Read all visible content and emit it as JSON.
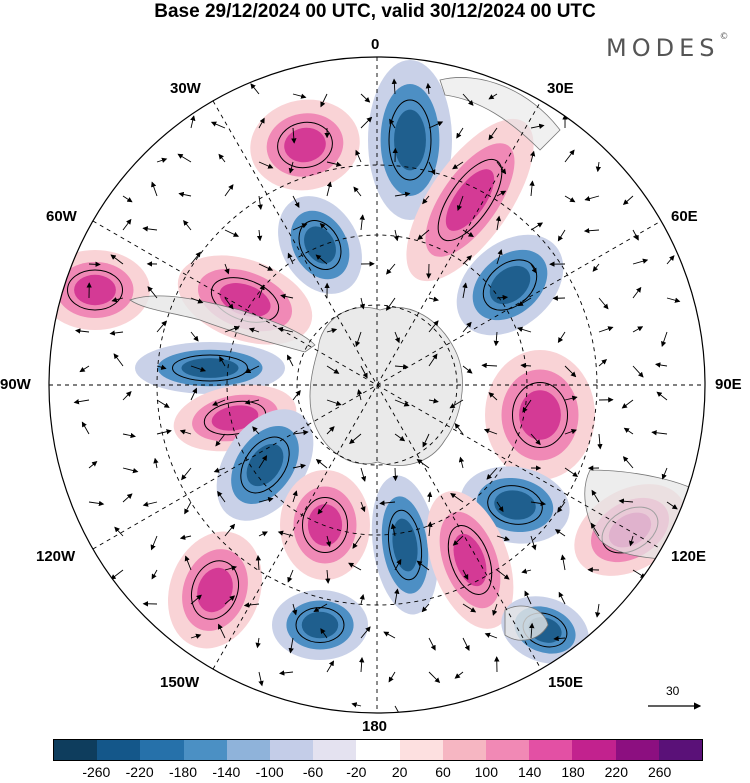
{
  "title": "Base 29/12/2024 00 UTC, valid 30/12/2024 00 UTC",
  "logo": {
    "text": "MODES",
    "mark": "©"
  },
  "map": {
    "projection": "south-polar-stereographic",
    "longitude_labels": {
      "top": "0",
      "bottom": "180",
      "left": "90W",
      "right": "90E",
      "top_left": "30W",
      "top_right": "30E",
      "upper_left": "60W",
      "upper_right": "60E",
      "lower_left": "120W",
      "lower_right": "120E",
      "bottom_left": "150W",
      "bottom_right": "150E"
    },
    "vector_scale_label": "30",
    "colors": {
      "land": "#e6e6e6",
      "negative_strong": "#1f5f8e",
      "negative_mid": "#4d8fc4",
      "negative_weak": "#c9d1e8",
      "positive_weak": "#f9d3d6",
      "positive_mid": "#f089b6",
      "positive_strong": "#d43a95"
    }
  },
  "colorbar": {
    "colors": [
      "#0e3d5d",
      "#14578a",
      "#2671aa",
      "#4b90c4",
      "#8fb3da",
      "#c4cde8",
      "#e4e2f0",
      "#ffffff",
      "#fde0e0",
      "#f6b6c2",
      "#f189b5",
      "#e350a4",
      "#c2228e",
      "#8c0f80",
      "#5a1178"
    ],
    "tick_labels": [
      "-260",
      "-220",
      "-180",
      "-140",
      "-100",
      "-60",
      "-20",
      "20",
      "60",
      "100",
      "140",
      "180",
      "220",
      "260"
    ]
  }
}
